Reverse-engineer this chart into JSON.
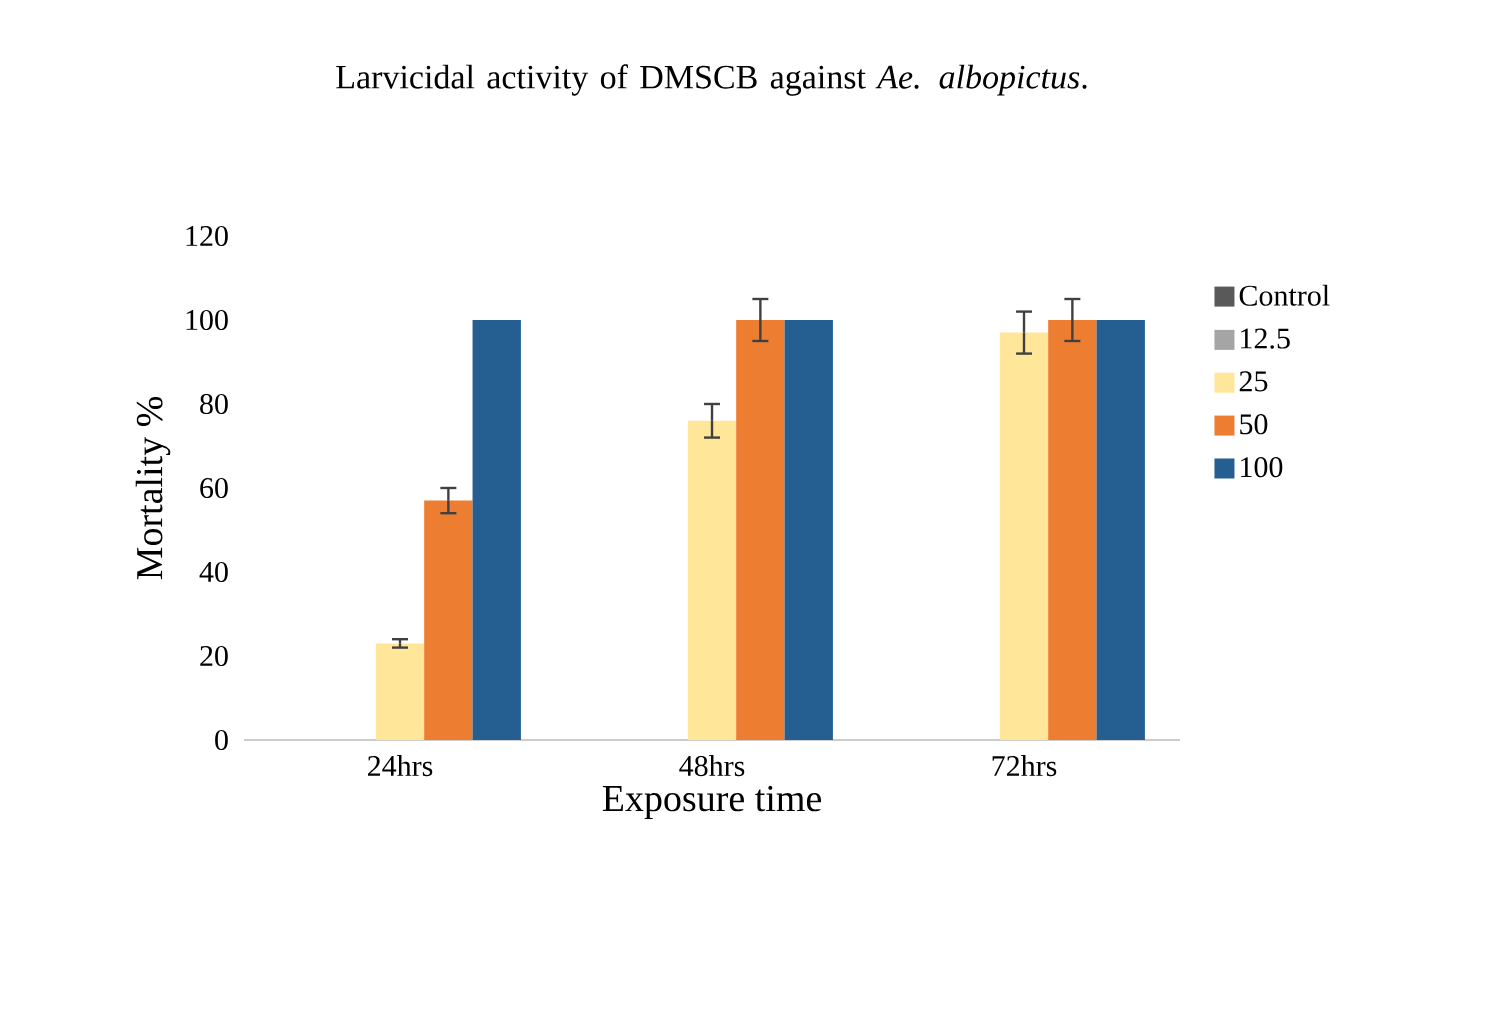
{
  "chart_data": {
    "type": "bar",
    "title": "Larvicidal activity of DMSCB against *Ae. albopictus*.",
    "xlabel": "Exposure time",
    "ylabel": "Mortality %",
    "categories": [
      "24hrs",
      "48hrs",
      "72hrs"
    ],
    "series": [
      {
        "name": "Control",
        "color": "#595959",
        "values": [
          0,
          0,
          0
        ]
      },
      {
        "name": "12.5",
        "color": "#a5a5a5",
        "values": [
          0,
          0,
          0
        ]
      },
      {
        "name": "25",
        "color": "#ffe699",
        "values": [
          23,
          76,
          97
        ],
        "errors": [
          1,
          4,
          5
        ]
      },
      {
        "name": "50",
        "color": "#ed7d31",
        "values": [
          57,
          100,
          100
        ],
        "errors": [
          3,
          5,
          5
        ]
      },
      {
        "name": "100",
        "color": "#255e91",
        "values": [
          100,
          100,
          100
        ]
      }
    ],
    "ylim": [
      0,
      120
    ],
    "yticks": [
      0,
      20,
      40,
      60,
      80,
      100,
      120
    ],
    "grid": false,
    "legend": "right"
  }
}
